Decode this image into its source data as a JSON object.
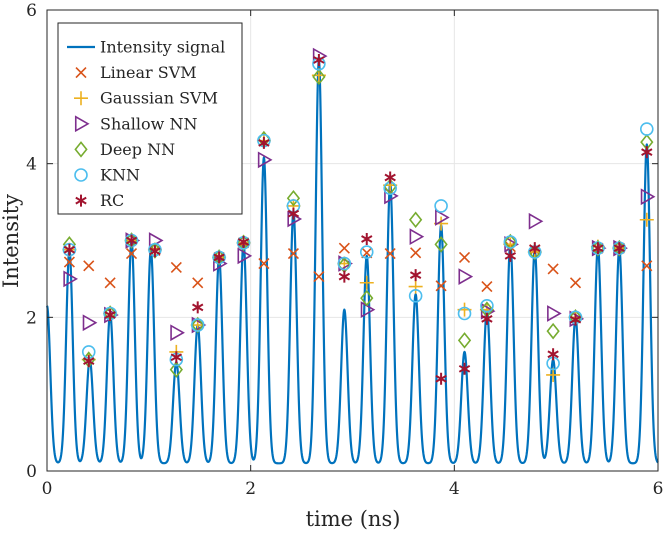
{
  "chart_data": {
    "type": "line",
    "title": "",
    "xlabel": "time (ns)",
    "ylabel": "Intensity",
    "xlim": [
      0,
      6
    ],
    "ylim": [
      0,
      6
    ],
    "xticks": [
      0,
      2,
      4,
      6
    ],
    "yticks": [
      0,
      2,
      4,
      6
    ],
    "grid": true,
    "legend_position": "top-left",
    "colors": {
      "signal": "#0072BD",
      "linear_svm": "#D95319",
      "gaussian_svm": "#EDB120",
      "shallow_nn": "#7E2F8E",
      "deep_nn": "#77AC30",
      "knn": "#4DBEEE",
      "rc": "#A2142F",
      "grid": "#e6e6e6",
      "axis": "#262626"
    },
    "signal": {
      "name": "Intensity signal",
      "start": [
        0,
        2.15
      ],
      "base": 0.1,
      "peak_width_ns": 0.045,
      "peaks": [
        [
          0.22,
          2.88
        ],
        [
          0.42,
          1.45
        ],
        [
          0.62,
          2.05
        ],
        [
          0.83,
          3.0
        ],
        [
          1.02,
          2.88
        ],
        [
          1.27,
          1.42
        ],
        [
          1.48,
          1.9
        ],
        [
          1.69,
          2.78
        ],
        [
          1.93,
          2.97
        ],
        [
          2.13,
          4.08
        ],
        [
          2.42,
          3.38
        ],
        [
          2.67,
          5.35
        ],
        [
          2.92,
          2.1
        ],
        [
          3.14,
          2.8
        ],
        [
          3.37,
          3.75
        ],
        [
          3.62,
          2.3
        ],
        [
          3.87,
          3.2
        ],
        [
          4.1,
          1.55
        ],
        [
          4.32,
          2.1
        ],
        [
          4.55,
          2.95
        ],
        [
          4.79,
          2.88
        ],
        [
          4.97,
          1.45
        ],
        [
          5.19,
          2.0
        ],
        [
          5.41,
          2.92
        ],
        [
          5.62,
          2.9
        ],
        [
          5.89,
          4.25
        ]
      ]
    },
    "series": [
      {
        "name": "Linear SVM",
        "marker": "x",
        "points": [
          [
            0.22,
            2.72
          ],
          [
            0.41,
            2.67
          ],
          [
            0.62,
            2.45
          ],
          [
            0.83,
            2.83
          ],
          [
            1.06,
            2.87
          ],
          [
            1.27,
            2.65
          ],
          [
            1.48,
            2.45
          ],
          [
            1.69,
            2.78
          ],
          [
            1.93,
            2.97
          ],
          [
            2.13,
            2.7
          ],
          [
            2.42,
            2.83
          ],
          [
            2.67,
            2.53
          ],
          [
            2.92,
            2.9
          ],
          [
            3.14,
            2.84
          ],
          [
            3.37,
            2.83
          ],
          [
            3.62,
            2.84
          ],
          [
            3.87,
            2.41
          ],
          [
            4.1,
            2.78
          ],
          [
            4.32,
            2.4
          ],
          [
            4.55,
            2.92
          ],
          [
            4.79,
            2.88
          ],
          [
            4.97,
            2.63
          ],
          [
            5.19,
            2.45
          ],
          [
            5.41,
            2.9
          ],
          [
            5.62,
            2.9
          ],
          [
            5.89,
            2.67
          ]
        ]
      },
      {
        "name": "Gaussian SVM",
        "marker": "+",
        "points": [
          [
            0.22,
            2.88
          ],
          [
            0.41,
            1.45
          ],
          [
            0.62,
            2.05
          ],
          [
            0.83,
            3.0
          ],
          [
            1.06,
            2.88
          ],
          [
            1.27,
            1.55
          ],
          [
            1.48,
            1.9
          ],
          [
            1.69,
            2.78
          ],
          [
            1.93,
            2.97
          ],
          [
            2.13,
            4.3
          ],
          [
            2.42,
            3.45
          ],
          [
            2.67,
            5.15
          ],
          [
            2.92,
            2.7
          ],
          [
            3.14,
            2.45
          ],
          [
            3.37,
            3.72
          ],
          [
            3.62,
            2.4
          ],
          [
            3.87,
            3.22
          ],
          [
            4.1,
            2.1
          ],
          [
            4.32,
            2.1
          ],
          [
            4.55,
            2.95
          ],
          [
            4.79,
            2.85
          ],
          [
            4.97,
            1.25
          ],
          [
            5.19,
            2.0
          ],
          [
            5.41,
            2.92
          ],
          [
            5.62,
            2.9
          ],
          [
            5.89,
            3.27
          ]
        ]
      },
      {
        "name": "Shallow NN",
        "marker": "triangle-right",
        "points": [
          [
            0.22,
            2.5
          ],
          [
            0.41,
            1.93
          ],
          [
            0.62,
            2.03
          ],
          [
            0.83,
            3.0
          ],
          [
            1.06,
            3.0
          ],
          [
            1.27,
            1.8
          ],
          [
            1.48,
            1.9
          ],
          [
            1.69,
            2.7
          ],
          [
            1.93,
            2.8
          ],
          [
            2.13,
            4.05
          ],
          [
            2.42,
            3.28
          ],
          [
            2.67,
            5.4
          ],
          [
            2.92,
            2.7
          ],
          [
            3.14,
            2.1
          ],
          [
            3.37,
            3.58
          ],
          [
            3.62,
            3.05
          ],
          [
            3.87,
            3.3
          ],
          [
            4.1,
            2.53
          ],
          [
            4.32,
            2.08
          ],
          [
            4.55,
            2.95
          ],
          [
            4.79,
            3.25
          ],
          [
            4.97,
            2.05
          ],
          [
            5.19,
            1.98
          ],
          [
            5.41,
            2.9
          ],
          [
            5.62,
            2.9
          ],
          [
            5.89,
            3.57
          ]
        ]
      },
      {
        "name": "Deep NN",
        "marker": "diamond",
        "points": [
          [
            0.22,
            2.95
          ],
          [
            0.41,
            1.45
          ],
          [
            0.62,
            2.05
          ],
          [
            0.83,
            3.0
          ],
          [
            1.06,
            2.87
          ],
          [
            1.27,
            1.32
          ],
          [
            1.48,
            1.9
          ],
          [
            1.69,
            2.78
          ],
          [
            1.93,
            2.97
          ],
          [
            2.13,
            4.32
          ],
          [
            2.42,
            3.55
          ],
          [
            2.67,
            5.13
          ],
          [
            2.92,
            2.68
          ],
          [
            3.14,
            2.25
          ],
          [
            3.37,
            3.7
          ],
          [
            3.62,
            3.27
          ],
          [
            3.87,
            2.95
          ],
          [
            4.1,
            1.7
          ],
          [
            4.32,
            2.1
          ],
          [
            4.55,
            2.98
          ],
          [
            4.79,
            2.85
          ],
          [
            4.97,
            1.82
          ],
          [
            5.19,
            2.0
          ],
          [
            5.41,
            2.9
          ],
          [
            5.62,
            2.9
          ],
          [
            5.89,
            4.28
          ]
        ]
      },
      {
        "name": "KNN",
        "marker": "circle",
        "points": [
          [
            0.22,
            2.88
          ],
          [
            0.41,
            1.55
          ],
          [
            0.62,
            2.05
          ],
          [
            0.83,
            3.0
          ],
          [
            1.06,
            2.88
          ],
          [
            1.27,
            1.45
          ],
          [
            1.48,
            1.9
          ],
          [
            1.69,
            2.78
          ],
          [
            1.93,
            2.97
          ],
          [
            2.13,
            4.3
          ],
          [
            2.42,
            3.45
          ],
          [
            2.67,
            5.3
          ],
          [
            2.92,
            2.7
          ],
          [
            3.14,
            2.85
          ],
          [
            3.37,
            3.68
          ],
          [
            3.62,
            2.28
          ],
          [
            3.87,
            3.45
          ],
          [
            4.1,
            2.05
          ],
          [
            4.32,
            2.15
          ],
          [
            4.55,
            2.98
          ],
          [
            4.79,
            2.85
          ],
          [
            4.97,
            1.4
          ],
          [
            5.19,
            2.0
          ],
          [
            5.41,
            2.9
          ],
          [
            5.62,
            2.9
          ],
          [
            5.89,
            4.45
          ]
        ]
      },
      {
        "name": "RC",
        "marker": "asterisk",
        "points": [
          [
            0.22,
            2.88
          ],
          [
            0.41,
            1.43
          ],
          [
            0.62,
            2.03
          ],
          [
            0.83,
            3.0
          ],
          [
            1.06,
            2.86
          ],
          [
            1.27,
            1.48
          ],
          [
            1.48,
            2.13
          ],
          [
            1.69,
            2.78
          ],
          [
            1.93,
            2.98
          ],
          [
            2.13,
            4.27
          ],
          [
            2.42,
            3.35
          ],
          [
            2.67,
            5.35
          ],
          [
            2.92,
            2.53
          ],
          [
            3.14,
            3.02
          ],
          [
            3.37,
            3.82
          ],
          [
            3.62,
            2.55
          ],
          [
            3.87,
            1.2
          ],
          [
            4.1,
            1.33
          ],
          [
            4.32,
            1.98
          ],
          [
            4.55,
            2.8
          ],
          [
            4.79,
            2.9
          ],
          [
            4.97,
            1.52
          ],
          [
            5.19,
            1.97
          ],
          [
            5.41,
            2.9
          ],
          [
            5.62,
            2.9
          ],
          [
            5.89,
            4.15
          ]
        ]
      }
    ]
  }
}
